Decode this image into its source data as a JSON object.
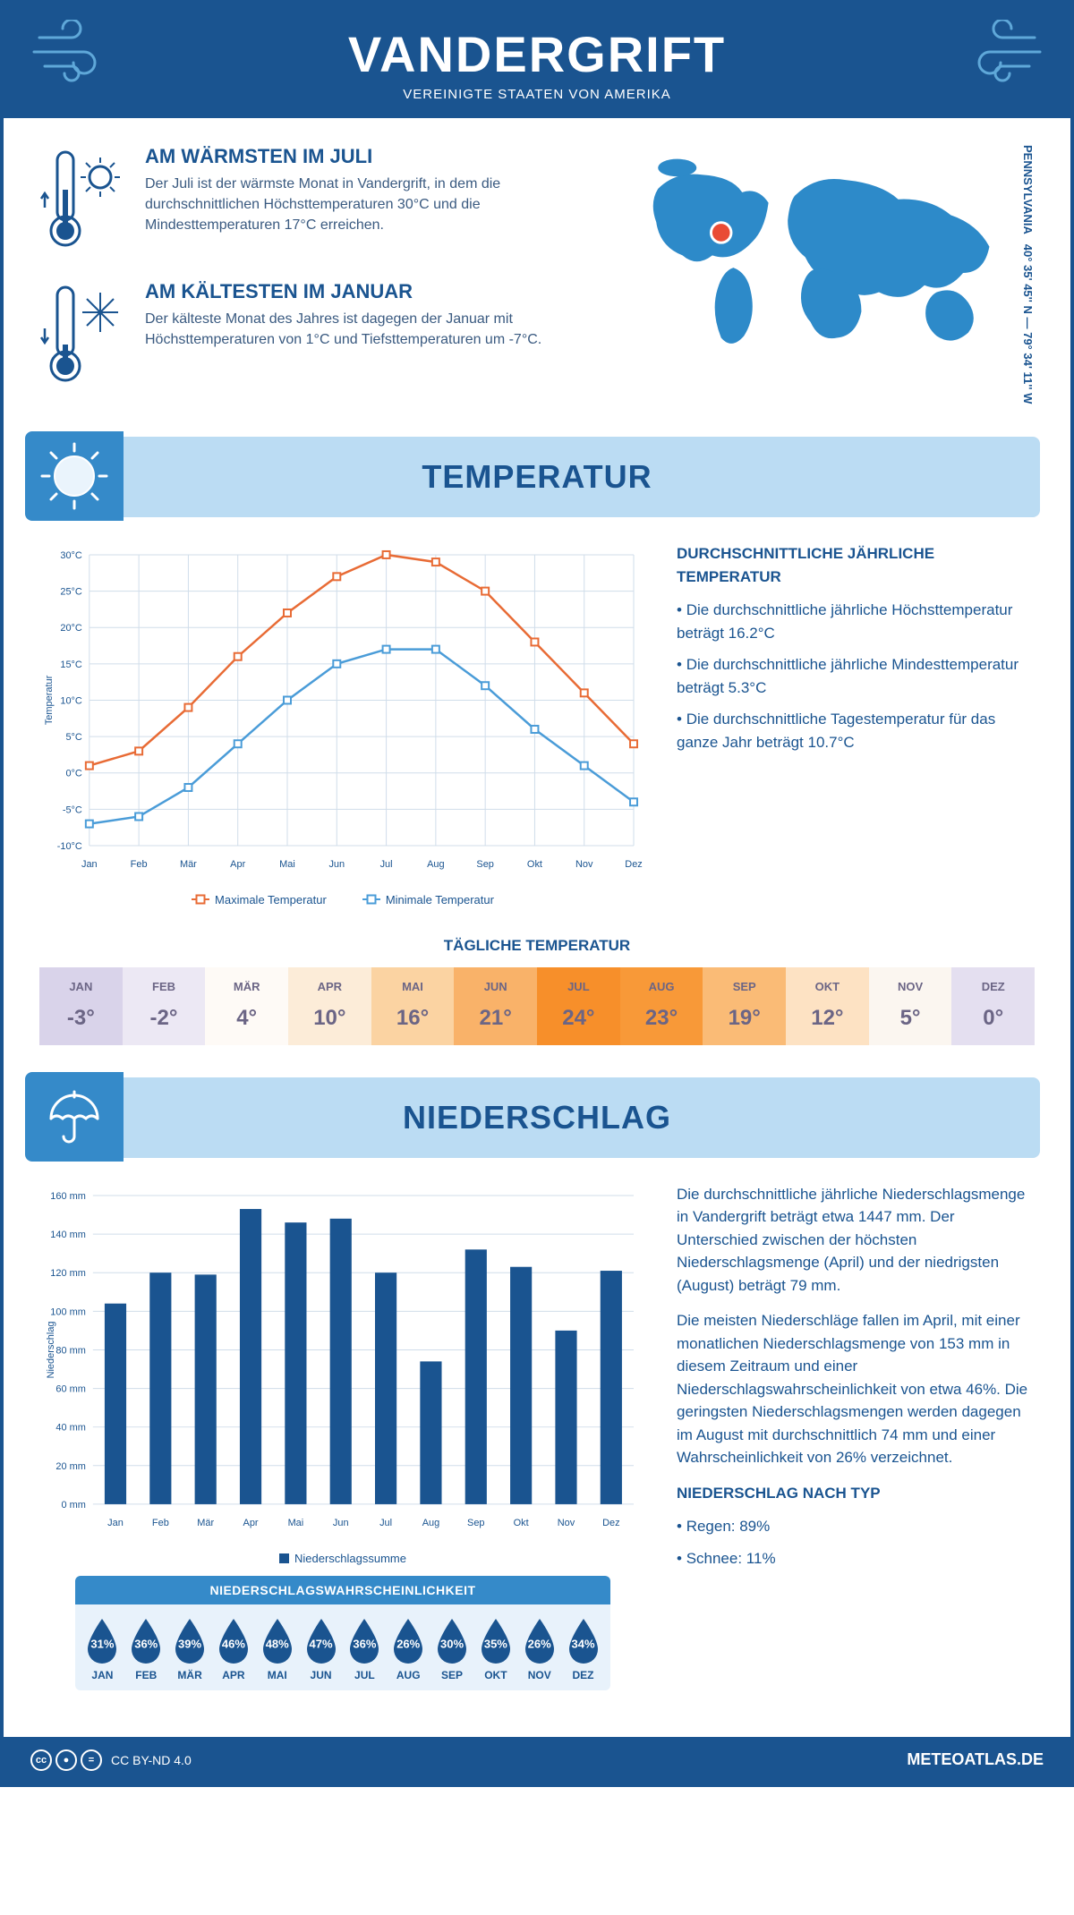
{
  "header": {
    "title": "VANDERGRIFT",
    "subtitle": "VEREINIGTE STAATEN VON AMERIKA"
  },
  "coords": {
    "lat": "40° 35' 45'' N",
    "sep": "—",
    "lon": "79° 34' 11'' W",
    "state": "PENNSYLVANIA"
  },
  "warmest": {
    "title": "AM WÄRMSTEN IM JULI",
    "text": "Der Juli ist der wärmste Monat in Vandergrift, in dem die durchschnittlichen Höchsttemperaturen 30°C und die Mindesttemperaturen 17°C erreichen."
  },
  "coldest": {
    "title": "AM KÄLTESTEN IM JANUAR",
    "text": "Der kälteste Monat des Jahres ist dagegen der Januar mit Höchsttemperaturen von 1°C und Tiefsttemperaturen um -7°C."
  },
  "temperature_section": {
    "title": "TEMPERATUR",
    "chart": {
      "type": "line",
      "months": [
        "Jan",
        "Feb",
        "Mär",
        "Apr",
        "Mai",
        "Jun",
        "Jul",
        "Aug",
        "Sep",
        "Okt",
        "Nov",
        "Dez"
      ],
      "max_series": {
        "label": "Maximale Temperatur",
        "color": "#e86b35",
        "values": [
          1,
          3,
          9,
          16,
          22,
          27,
          30,
          29,
          25,
          18,
          11,
          4
        ]
      },
      "min_series": {
        "label": "Minimale Temperatur",
        "color": "#4a9cd8",
        "values": [
          -7,
          -6,
          -2,
          4,
          10,
          15,
          17,
          17,
          12,
          6,
          1,
          -4
        ]
      },
      "ylim": [
        -10,
        30
      ],
      "ytick_step": 5,
      "ylabel": "Temperatur",
      "grid_color": "#d0ddea",
      "label_fontsize": 11
    },
    "stats": {
      "title": "DURCHSCHNITTLICHE JÄHRLICHE TEMPERATUR",
      "items": [
        "Die durchschnittliche jährliche Höchsttemperatur beträgt 16.2°C",
        "Die durchschnittliche jährliche Mindesttemperatur beträgt 5.3°C",
        "Die durchschnittliche Tagestemperatur für das ganze Jahr beträgt 10.7°C"
      ]
    },
    "daily_title": "TÄGLICHE TEMPERATUR",
    "daily": {
      "months": [
        "JAN",
        "FEB",
        "MÄR",
        "APR",
        "MAI",
        "JUN",
        "JUL",
        "AUG",
        "SEP",
        "OKT",
        "NOV",
        "DEZ"
      ],
      "values": [
        "-3°",
        "-2°",
        "4°",
        "10°",
        "16°",
        "21°",
        "24°",
        "23°",
        "19°",
        "12°",
        "5°",
        "0°"
      ],
      "bg_colors": [
        "#d9d3ea",
        "#ece8f4",
        "#fefaf6",
        "#fcecd8",
        "#fbd3a2",
        "#f9b269",
        "#f78f2a",
        "#f89938",
        "#fabb76",
        "#fde2c3",
        "#fbf6f0",
        "#e4dff0"
      ],
      "text_color": "#6b6585"
    }
  },
  "precip_section": {
    "title": "NIEDERSCHLAG",
    "chart": {
      "type": "bar",
      "months": [
        "Jan",
        "Feb",
        "Mär",
        "Apr",
        "Mai",
        "Jun",
        "Jul",
        "Aug",
        "Sep",
        "Okt",
        "Nov",
        "Dez"
      ],
      "values": [
        104,
        120,
        119,
        153,
        146,
        148,
        120,
        74,
        132,
        123,
        90,
        121
      ],
      "bar_color": "#1a5490",
      "ylim": [
        0,
        160
      ],
      "ytick_step": 20,
      "ylabel": "Niederschlag",
      "legend": "Niederschlagssumme",
      "grid_color": "#d0ddea"
    },
    "text": [
      "Die durchschnittliche jährliche Niederschlagsmenge in Vandergrift beträgt etwa 1447 mm. Der Unterschied zwischen der höchsten Niederschlagsmenge (April) und der niedrigsten (August) beträgt 79 mm.",
      "Die meisten Niederschläge fallen im April, mit einer monatlichen Niederschlagsmenge von 153 mm in diesem Zeitraum und einer Niederschlagswahrscheinlichkeit von etwa 46%. Die geringsten Niederschlagsmengen werden dagegen im August mit durchschnittlich 74 mm und einer Wahrscheinlichkeit von 26% verzeichnet."
    ],
    "by_type": {
      "title": "NIEDERSCHLAG NACH TYP",
      "items": [
        "Regen: 89%",
        "Schnee: 11%"
      ]
    },
    "prob": {
      "title": "NIEDERSCHLAGSWAHRSCHEINLICHKEIT",
      "months": [
        "JAN",
        "FEB",
        "MÄR",
        "APR",
        "MAI",
        "JUN",
        "JUL",
        "AUG",
        "SEP",
        "OKT",
        "NOV",
        "DEZ"
      ],
      "values": [
        "31%",
        "36%",
        "39%",
        "46%",
        "48%",
        "47%",
        "36%",
        "26%",
        "30%",
        "35%",
        "26%",
        "34%"
      ],
      "drop_color": "#1a5490"
    }
  },
  "footer": {
    "license": "CC BY-ND 4.0",
    "site": "METEOATLAS.DE"
  },
  "colors": {
    "primary": "#1a5490",
    "light_blue": "#bbdcf3",
    "mid_blue": "#358ac9",
    "map": "#2d8ac9"
  }
}
